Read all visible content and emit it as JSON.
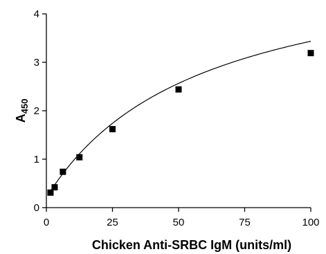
{
  "chart_data": {
    "type": "scatter",
    "title": "",
    "xlabel": "Chicken Anti-SRBC IgM (units/ml)",
    "ylabel": {
      "main": "A",
      "sub": "450"
    },
    "xlim": [
      0,
      100
    ],
    "ylim": [
      0,
      4
    ],
    "xticks": [
      0,
      25,
      50,
      75,
      100
    ],
    "yticks": [
      0,
      1,
      2,
      3,
      4
    ],
    "grid": false,
    "legend": "none",
    "series": [
      {
        "x": [
          1.56,
          3.13,
          6.25,
          12.5,
          25,
          50,
          100
        ],
        "y": [
          0.31,
          0.42,
          0.74,
          1.04,
          1.62,
          2.44,
          3.19
        ],
        "marker": "square",
        "color": "#000000"
      }
    ],
    "fit_curve": {
      "kind": "hyperbolic",
      "bmax": 5.11,
      "kd": 58.5,
      "offset": 0.21,
      "color": "#000000"
    }
  }
}
